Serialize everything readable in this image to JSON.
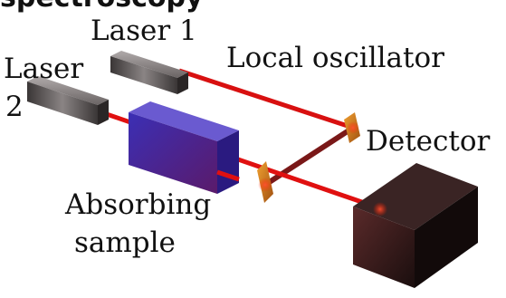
{
  "diagram": {
    "title_partial": "spectroscopy",
    "labels": {
      "laser1": "Laser 1",
      "laser2_line1": "Laser",
      "laser2_line2": "2",
      "local_oscillator": "Local oscillator",
      "detector": "Detector",
      "absorbing_line1": "Absorbing",
      "absorbing_line2": "sample"
    },
    "colors": {
      "beam": "#e01010",
      "beam_dark": "#7a1a1a",
      "sample": "#3a2aa0",
      "sample_side": "#2a1a7a",
      "sample_top": "#5a4ac0",
      "mirror": "#e08a20",
      "laser_body": "#5a5656",
      "detector_body": "#2a1a1a"
    }
  }
}
